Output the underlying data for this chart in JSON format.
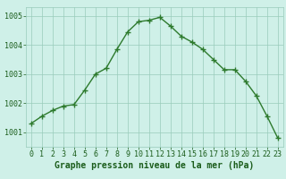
{
  "x": [
    0,
    1,
    2,
    3,
    4,
    5,
    6,
    7,
    8,
    9,
    10,
    11,
    12,
    13,
    14,
    15,
    16,
    17,
    18,
    19,
    20,
    21,
    22,
    23
  ],
  "y": [
    1001.3,
    1001.55,
    1001.75,
    1001.9,
    1001.95,
    1002.45,
    1003.0,
    1003.2,
    1003.85,
    1004.45,
    1004.8,
    1004.85,
    1004.95,
    1004.65,
    1004.3,
    1004.1,
    1003.85,
    1003.5,
    1003.15,
    1003.15,
    1002.75,
    1002.25,
    1001.55,
    1000.8
  ],
  "line_color": "#2d7a2d",
  "marker": "+",
  "marker_size": 4,
  "line_width": 1.0,
  "bg_color": "#cff0e8",
  "grid_color": "#99ccbb",
  "xlabel": "Graphe pression niveau de la mer (hPa)",
  "xlabel_fontsize": 7,
  "xlabel_color": "#1a5c1a",
  "tick_color": "#1a5c1a",
  "tick_fontsize": 6,
  "ylim": [
    1000.5,
    1005.3
  ],
  "yticks": [
    1001,
    1002,
    1003,
    1004,
    1005
  ],
  "xticks": [
    0,
    1,
    2,
    3,
    4,
    5,
    6,
    7,
    8,
    9,
    10,
    11,
    12,
    13,
    14,
    15,
    16,
    17,
    18,
    19,
    20,
    21,
    22,
    23
  ]
}
